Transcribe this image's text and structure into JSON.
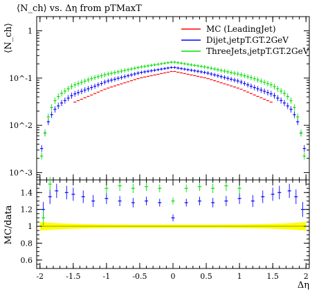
{
  "title": "⟨N_ch⟩ vs. Δη from pTMaxT",
  "chart_data": [
    {
      "type": "line",
      "title": "⟨N_ch⟩ vs. Δη from pTMaxT",
      "ylabel": "⟨N_ch⟩",
      "xlabel": "",
      "xlim": [
        -2.05,
        2.05
      ],
      "ylim": [
        0.0007,
        2.0
      ],
      "yscale": "log",
      "ytick_labels": [
        "1",
        "10^-1",
        "10^-2",
        "10^-3"
      ],
      "legend_position": "top-right",
      "series": [
        {
          "name": "MC (LeadingJet)",
          "color": "#ff0000",
          "x": [
            -1.5,
            -1.0,
            -0.5,
            0.0,
            0.5,
            1.0,
            1.5
          ],
          "y": [
            0.03,
            0.06,
            0.1,
            0.14,
            0.1,
            0.06,
            0.03
          ]
        },
        {
          "name": "Dijet,jetpT.GT.2GeV",
          "color": "#0000ff",
          "x": [
            -1.98,
            -1.9,
            -1.8,
            -1.7,
            -1.5,
            -1.2,
            -1.0,
            -0.5,
            0.0,
            0.5,
            1.0,
            1.2,
            1.5,
            1.7,
            1.8,
            1.9,
            1.98
          ],
          "y": [
            0.003,
            0.01,
            0.02,
            0.028,
            0.045,
            0.065,
            0.085,
            0.13,
            0.17,
            0.13,
            0.085,
            0.065,
            0.045,
            0.028,
            0.02,
            0.01,
            0.003
          ]
        },
        {
          "name": "ThreeJets,jetpT.GT.2GeV",
          "color": "#00dd00",
          "x": [
            -1.98,
            -1.9,
            -1.8,
            -1.7,
            -1.5,
            -1.2,
            -1.0,
            -0.5,
            0.0,
            0.5,
            1.0,
            1.2,
            1.5,
            1.7,
            1.8,
            1.9,
            1.98
          ],
          "y": [
            0.002,
            0.012,
            0.03,
            0.045,
            0.07,
            0.1,
            0.12,
            0.17,
            0.22,
            0.17,
            0.12,
            0.1,
            0.07,
            0.045,
            0.03,
            0.012,
            0.002
          ]
        }
      ]
    },
    {
      "type": "scatter",
      "title": "",
      "ylabel": "MC/data",
      "xlabel": "Δη",
      "xlim": [
        -2.05,
        2.05
      ],
      "ylim": [
        0.5,
        1.55
      ],
      "x_ticks": [
        -2,
        -1.5,
        -1,
        -0.5,
        0,
        0.5,
        1,
        1.5,
        2
      ],
      "x_tick_labels": [
        "-2",
        "-1.5",
        "-1",
        "-0.5",
        "0",
        "0.5",
        "1",
        "1.5",
        "2"
      ],
      "y_ticks": [
        0.6,
        0.8,
        1.0,
        1.2,
        1.4
      ],
      "y_tick_labels": [
        "0.6",
        "0.8",
        "1",
        "1.2",
        "1.4"
      ],
      "band": {
        "name": "data uncertainty",
        "color": "#ffff00",
        "center": 1.0,
        "halfwidth_center": 0.02,
        "halfwidth_edge": 0.05
      },
      "reference_line": 1.0,
      "series": [
        {
          "name": "Dijet,jetpT.GT.2GeV",
          "color": "#0000ff",
          "x": [
            -1.95,
            -1.85,
            -1.75,
            -1.6,
            -1.5,
            -1.35,
            -1.2,
            -1.0,
            -0.8,
            -0.6,
            -0.4,
            -0.2,
            0.0,
            0.2,
            0.4,
            0.6,
            0.8,
            1.0,
            1.2,
            1.35,
            1.5,
            1.6,
            1.75,
            1.85,
            1.95
          ],
          "y": [
            1.2,
            1.35,
            1.42,
            1.4,
            1.38,
            1.35,
            1.3,
            1.33,
            1.3,
            1.28,
            1.3,
            1.28,
            1.1,
            1.28,
            1.3,
            1.28,
            1.3,
            1.33,
            1.3,
            1.35,
            1.38,
            1.4,
            1.42,
            1.35,
            1.2
          ]
        },
        {
          "name": "ThreeJets,jetpT.GT.2GeV",
          "color": "#00dd00",
          "x": [
            -1.95,
            -1.85,
            -1.0,
            -0.8,
            -0.6,
            -0.4,
            -0.2,
            0.0,
            0.2,
            0.4,
            0.6,
            0.8,
            1.0
          ],
          "y": [
            1.1,
            1.5,
            1.45,
            1.48,
            1.45,
            1.47,
            1.45,
            1.3,
            1.45,
            1.47,
            1.45,
            1.48,
            1.45
          ]
        }
      ]
    }
  ]
}
